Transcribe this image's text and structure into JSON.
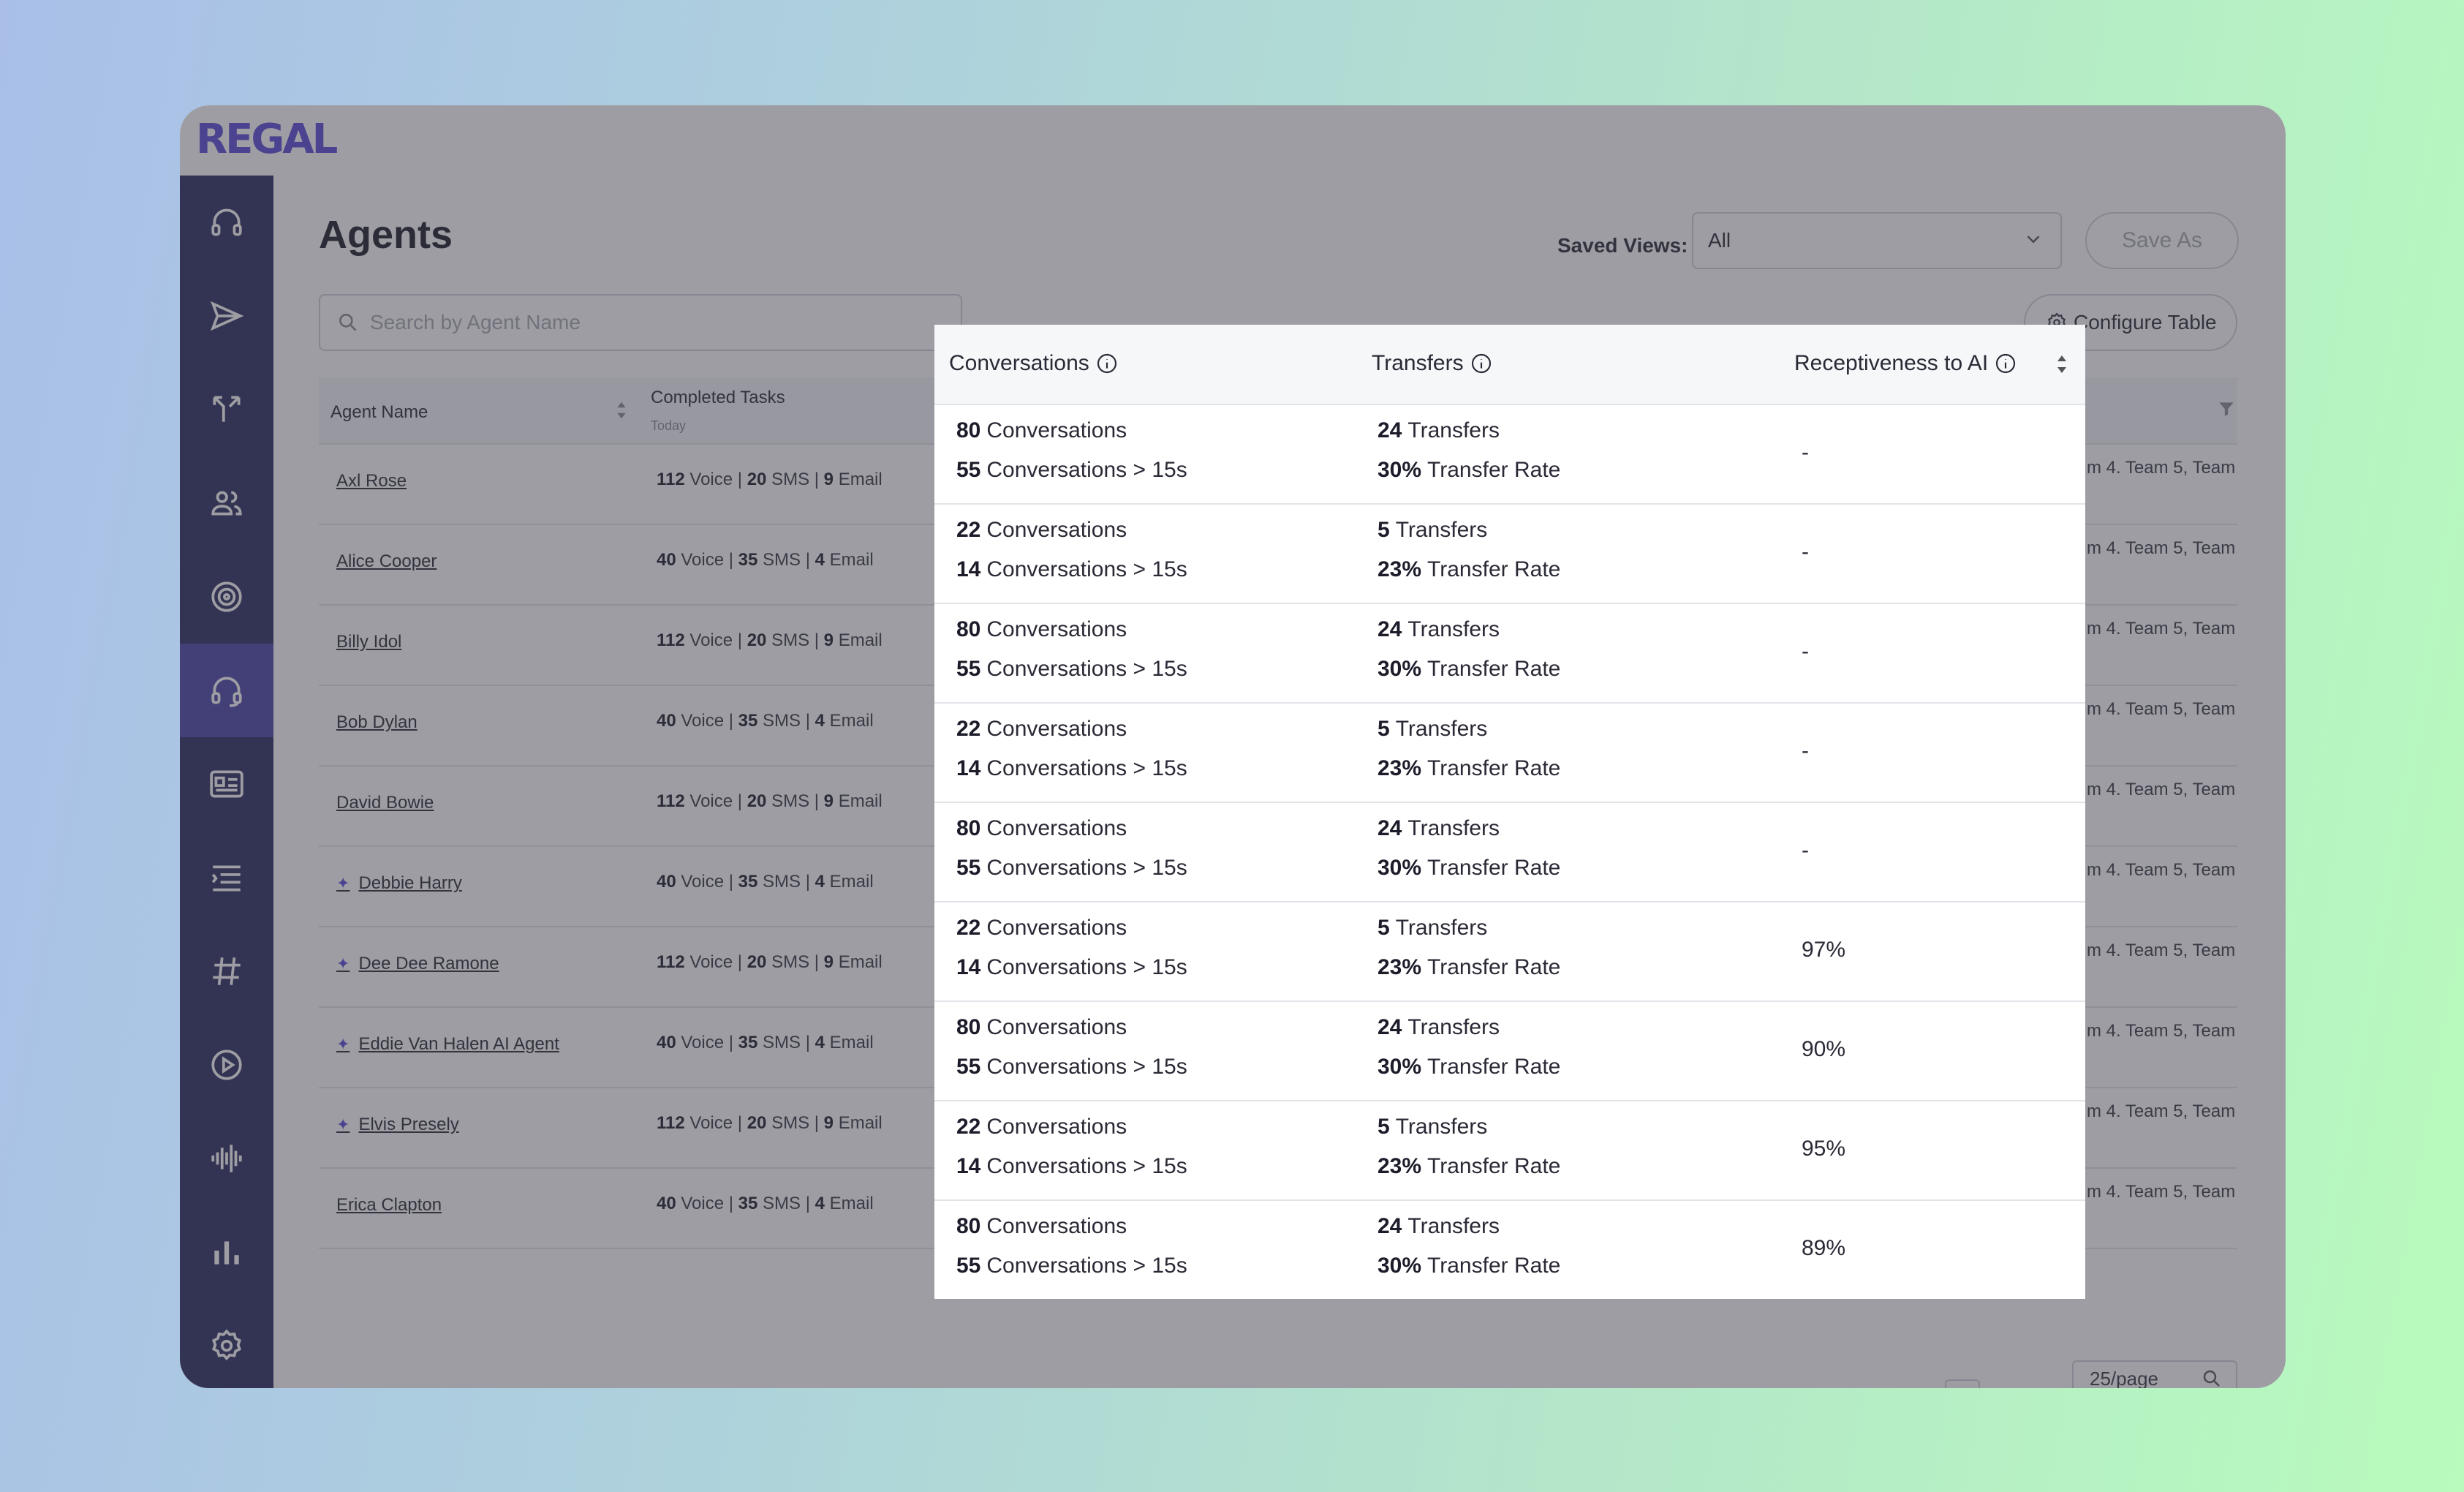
{
  "app": {
    "logo": "REGAL"
  },
  "header": {
    "title": "Agents",
    "saved_views_label": "Saved Views:",
    "saved_views_value": "All",
    "save_as_label": "Save As",
    "configure_label": "Configure Table"
  },
  "search": {
    "placeholder": "Search by Agent Name"
  },
  "table": {
    "col_agent": "Agent Name",
    "col_tasks": "Completed Tasks",
    "col_tasks_sub": "Today",
    "rows": [
      {
        "name": "Axl Rose",
        "ai": false,
        "voice": "112",
        "sms": "20",
        "email": "9",
        "team": "m 4. Team 5, Team"
      },
      {
        "name": "Alice Cooper",
        "ai": false,
        "voice": "40",
        "sms": "35",
        "email": "4",
        "team": "m 4. Team 5, Team"
      },
      {
        "name": "Billy Idol",
        "ai": false,
        "voice": "112",
        "sms": "20",
        "email": "9",
        "team": "m 4. Team 5, Team"
      },
      {
        "name": "Bob Dylan",
        "ai": false,
        "voice": "40",
        "sms": "35",
        "email": "4",
        "team": "m 4. Team 5, Team"
      },
      {
        "name": "David Bowie",
        "ai": false,
        "voice": "112",
        "sms": "20",
        "email": "9",
        "team": "m 4. Team 5, Team"
      },
      {
        "name": "Debbie Harry",
        "ai": true,
        "voice": "40",
        "sms": "35",
        "email": "4",
        "team": "m 4. Team 5, Team"
      },
      {
        "name": "Dee Dee Ramone",
        "ai": true,
        "voice": "112",
        "sms": "20",
        "email": "9",
        "team": "m 4. Team 5, Team"
      },
      {
        "name": "Eddie Van Halen AI Agent",
        "ai": true,
        "voice": "40",
        "sms": "35",
        "email": "4",
        "team": "m 4. Team 5, Team"
      },
      {
        "name": "Elvis Presely",
        "ai": true,
        "voice": "112",
        "sms": "20",
        "email": "9",
        "team": "m 4. Team 5, Team"
      },
      {
        "name": "Erica Clapton",
        "ai": false,
        "voice": "40",
        "sms": "35",
        "email": "4",
        "team": "m 4. Team 5, Team"
      }
    ],
    "labels": {
      "voice": "Voice",
      "sms": "SMS",
      "email": "Email",
      "sep": "|"
    }
  },
  "pagination": {
    "page_size": "25/page"
  },
  "popup": {
    "col_conversations": "Conversations",
    "col_transfers": "Transfers",
    "col_receptiveness": "Receptiveness to AI",
    "labels": {
      "conv": "Conversations",
      "conv15": "Conversations > 15s",
      "transfers": "Transfers",
      "rate": "Transfer Rate"
    },
    "rows": [
      {
        "conv": "80",
        "conv15": "55",
        "transfers": "24",
        "rate": "30%",
        "receptiveness": "-"
      },
      {
        "conv": "22",
        "conv15": "14",
        "transfers": "5",
        "rate": "23%",
        "receptiveness": "-"
      },
      {
        "conv": "80",
        "conv15": "55",
        "transfers": "24",
        "rate": "30%",
        "receptiveness": "-"
      },
      {
        "conv": "22",
        "conv15": "14",
        "transfers": "5",
        "rate": "23%",
        "receptiveness": "-"
      },
      {
        "conv": "80",
        "conv15": "55",
        "transfers": "24",
        "rate": "30%",
        "receptiveness": "-"
      },
      {
        "conv": "22",
        "conv15": "14",
        "transfers": "5",
        "rate": "23%",
        "receptiveness": "97%"
      },
      {
        "conv": "80",
        "conv15": "55",
        "transfers": "24",
        "rate": "30%",
        "receptiveness": "90%"
      },
      {
        "conv": "22",
        "conv15": "14",
        "transfers": "5",
        "rate": "23%",
        "receptiveness": "95%"
      },
      {
        "conv": "80",
        "conv15": "55",
        "transfers": "24",
        "rate": "30%",
        "receptiveness": "89%"
      }
    ]
  },
  "sidebar": {
    "items": [
      {
        "icon": "headset-icon"
      },
      {
        "icon": "send-icon"
      },
      {
        "icon": "branch-icon"
      },
      {
        "icon": "users-icon"
      },
      {
        "icon": "target-icon"
      },
      {
        "icon": "agent-headset-icon",
        "active": true
      },
      {
        "icon": "id-card-icon"
      },
      {
        "icon": "list-icon"
      },
      {
        "icon": "hashtag-icon"
      },
      {
        "icon": "play-icon"
      },
      {
        "icon": "waveform-icon"
      },
      {
        "icon": "bar-chart-icon"
      },
      {
        "icon": "gear-icon"
      }
    ]
  },
  "colors": {
    "brand": "#5b4bd6",
    "sidebar": "#2b2a5e",
    "sidebar_active": "#4b45a8"
  }
}
